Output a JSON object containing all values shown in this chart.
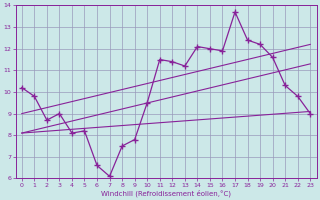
{
  "xlabel": "Windchill (Refroidissement éolien,°C)",
  "xlim": [
    -0.5,
    23.5
  ],
  "ylim": [
    6,
    14
  ],
  "yticks": [
    6,
    7,
    8,
    9,
    10,
    11,
    12,
    13,
    14
  ],
  "xticks": [
    0,
    1,
    2,
    3,
    4,
    5,
    6,
    7,
    8,
    9,
    10,
    11,
    12,
    13,
    14,
    15,
    16,
    17,
    18,
    19,
    20,
    21,
    22,
    23
  ],
  "bg_color": "#cce8e8",
  "grid_color": "#9999bb",
  "line_color": "#882299",
  "main_x": [
    0,
    1,
    2,
    3,
    4,
    5,
    6,
    7,
    8,
    9,
    10,
    11,
    12,
    13,
    14,
    15,
    16,
    17,
    18,
    19,
    20,
    21,
    22,
    23
  ],
  "main_y": [
    10.2,
    9.8,
    8.7,
    9.0,
    8.1,
    8.2,
    6.6,
    6.1,
    7.5,
    7.8,
    9.5,
    11.5,
    11.4,
    11.2,
    12.1,
    12.0,
    11.9,
    13.7,
    12.4,
    12.2,
    11.6,
    10.3,
    9.8,
    9.0
  ],
  "trend1_x": [
    0,
    23
  ],
  "trend1_y": [
    9.0,
    12.2
  ],
  "trend2_x": [
    0,
    23
  ],
  "trend2_y": [
    8.1,
    11.3
  ],
  "trend3_x": [
    0,
    23
  ],
  "trend3_y": [
    8.1,
    9.1
  ]
}
